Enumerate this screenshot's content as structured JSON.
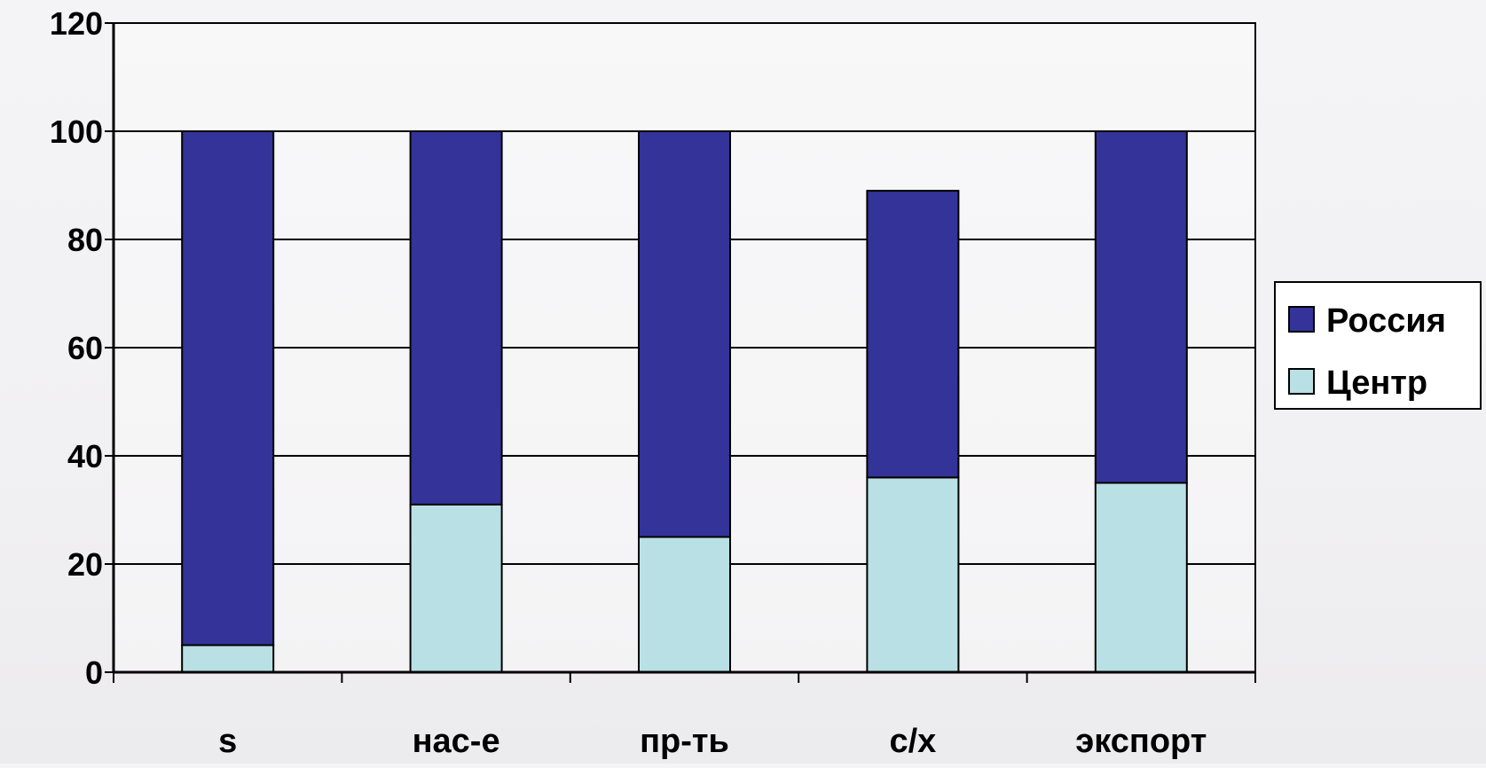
{
  "chart_data": {
    "type": "bar",
    "stacked": true,
    "categories": [
      "s",
      "нас-е",
      "пр-ть",
      "с/х",
      "экспорт"
    ],
    "series": [
      {
        "name": "Центр",
        "color": "#b9e0e4",
        "values": [
          5,
          31,
          25,
          36,
          35
        ]
      },
      {
        "name": "Россия",
        "color": "#333399",
        "values": [
          95,
          69,
          75,
          53,
          65
        ]
      }
    ],
    "legend_order": [
      "Россия",
      "Центр"
    ],
    "ylim": [
      0,
      120
    ],
    "yticks": [
      0,
      20,
      40,
      60,
      80,
      100,
      120
    ],
    "grid": true,
    "legend_position": "right",
    "title": "",
    "xlabel": "",
    "ylabel": ""
  }
}
